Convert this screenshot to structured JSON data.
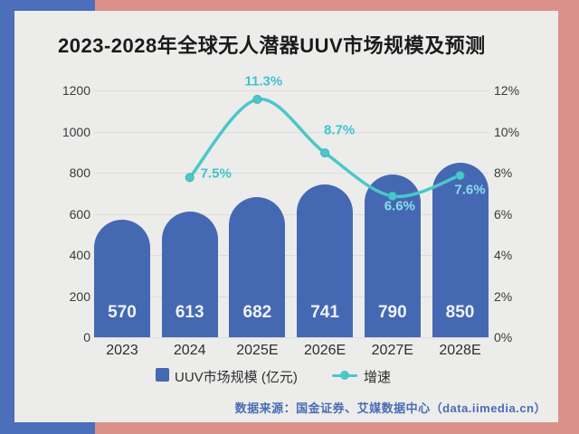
{
  "title": "2023-2028年全球无人潜器UUV市场规模及预测",
  "source": "数据来源：国金证券、艾媒数据中心（data.iimedia.cn）",
  "legend": {
    "bar_label": "UUV市场规模 (亿元)",
    "line_label": "增速"
  },
  "colors": {
    "background_salmon": "#db9189",
    "background_blue": "#4b6fbb",
    "card": "#ececeb",
    "bar": "#4568b2",
    "line": "#4bc7c9",
    "pct_label": "#3fc4cb",
    "pct_label_on_bar": "#89dfe8",
    "source_text": "#4a6cb5",
    "title_text": "#1b1b1b"
  },
  "chart_data": {
    "type": "bar",
    "subtype": "combo-bar-line",
    "title": "2023-2028年全球无人潜器UUV市场规模及预测",
    "categories": [
      "2023",
      "2024",
      "2025E",
      "2026E",
      "2027E",
      "2028E"
    ],
    "series": [
      {
        "name": "UUV市场规模 (亿元)",
        "type": "bar",
        "axis": "left",
        "values": [
          570,
          613,
          682,
          741,
          790,
          850
        ]
      },
      {
        "name": "增速",
        "type": "line",
        "axis": "right",
        "categories": [
          "2024",
          "2025E",
          "2026E",
          "2027E",
          "2028E"
        ],
        "values_pct": [
          7.5,
          11.3,
          8.7,
          6.6,
          7.6
        ]
      }
    ],
    "left_axis": {
      "label": "亿元",
      "ticks": [
        0,
        200,
        400,
        600,
        800,
        1000,
        1200
      ],
      "min": 0,
      "max": 1200
    },
    "right_axis": {
      "label": "%",
      "ticks_pct": [
        0,
        2,
        4,
        6,
        8,
        10,
        12
      ],
      "min_pct": 0,
      "max_pct": 12
    },
    "grid": true,
    "legend_position": "bottom"
  }
}
